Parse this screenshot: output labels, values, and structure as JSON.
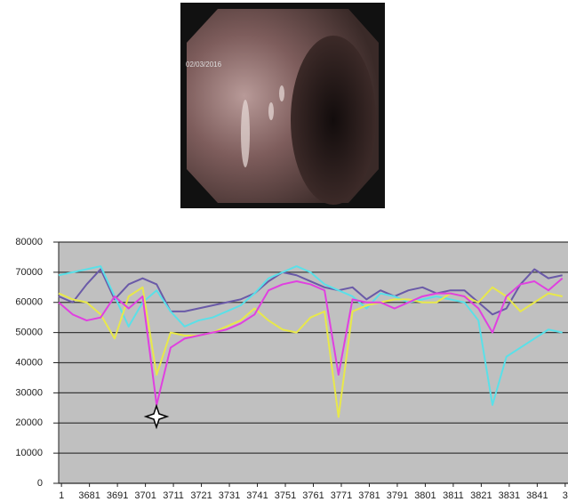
{
  "image": {
    "overlay": [
      "02/03/2016"
    ]
  },
  "chart_data": {
    "type": "line",
    "x": [
      3670,
      3675,
      3680,
      3685,
      3690,
      3695,
      3700,
      3705,
      3710,
      3715,
      3720,
      3725,
      3730,
      3735,
      3740,
      3745,
      3750,
      3755,
      3760,
      3765,
      3770,
      3775,
      3780,
      3785,
      3790,
      3795,
      3800,
      3805,
      3810,
      3815,
      3820,
      3825,
      3830,
      3835,
      3840,
      3845,
      3850
    ],
    "series": [
      {
        "color": "#6a5aa8",
        "values": [
          62000,
          60000,
          66000,
          71000,
          61000,
          66000,
          68000,
          66000,
          57000,
          57000,
          58000,
          59000,
          60000,
          61000,
          63000,
          67000,
          70000,
          69000,
          67000,
          65000,
          64000,
          65000,
          61000,
          64000,
          62000,
          64000,
          65000,
          63000,
          64000,
          64000,
          60000,
          56000,
          58000,
          66000,
          71000,
          68000,
          69000
        ]
      },
      {
        "color": "#5ae0e8",
        "values": [
          69000,
          70000,
          71000,
          72000,
          62000,
          52000,
          60000,
          64000,
          57000,
          52000,
          54000,
          55000,
          57000,
          59000,
          63000,
          68000,
          70000,
          72000,
          70000,
          66000,
          64000,
          62000,
          58000,
          63000,
          62000,
          60000,
          61000,
          62000,
          61000,
          60000,
          54000,
          26000,
          42000,
          45000,
          48000,
          51000,
          50000
        ]
      },
      {
        "color": "#e8e84a",
        "values": [
          63000,
          61000,
          60000,
          56000,
          48000,
          62000,
          65000,
          36000,
          50000,
          49000,
          49000,
          50000,
          52000,
          54000,
          58000,
          54000,
          51000,
          50000,
          55000,
          57000,
          22000,
          57000,
          59000,
          60000,
          61000,
          61000,
          60000,
          60000,
          63000,
          62000,
          60000,
          65000,
          62000,
          57000,
          60000,
          63000,
          62000
        ]
      },
      {
        "color": "#e040e0",
        "values": [
          60000,
          56000,
          54000,
          55000,
          62000,
          58000,
          62000,
          26000,
          45000,
          48000,
          49000,
          50000,
          51000,
          53000,
          56000,
          64000,
          66000,
          67000,
          66000,
          64000,
          36000,
          61000,
          60000,
          60000,
          58000,
          60000,
          62000,
          63000,
          63000,
          62000,
          58000,
          50000,
          62000,
          66000,
          67000,
          64000,
          68000
        ]
      }
    ],
    "xlim": [
      3670,
      3852
    ],
    "xticks": [
      {
        "value": 3671,
        "label": "1"
      },
      3681,
      3691,
      3701,
      3711,
      3721,
      3731,
      3741,
      3751,
      3761,
      3771,
      3781,
      3791,
      3801,
      3811,
      3821,
      3831,
      3841,
      {
        "value": 3851,
        "label": "3"
      }
    ],
    "ylim": [
      0,
      80000
    ],
    "yticks": [
      0,
      10000,
      20000,
      30000,
      40000,
      50000,
      60000,
      70000,
      80000
    ],
    "grid": true
  }
}
